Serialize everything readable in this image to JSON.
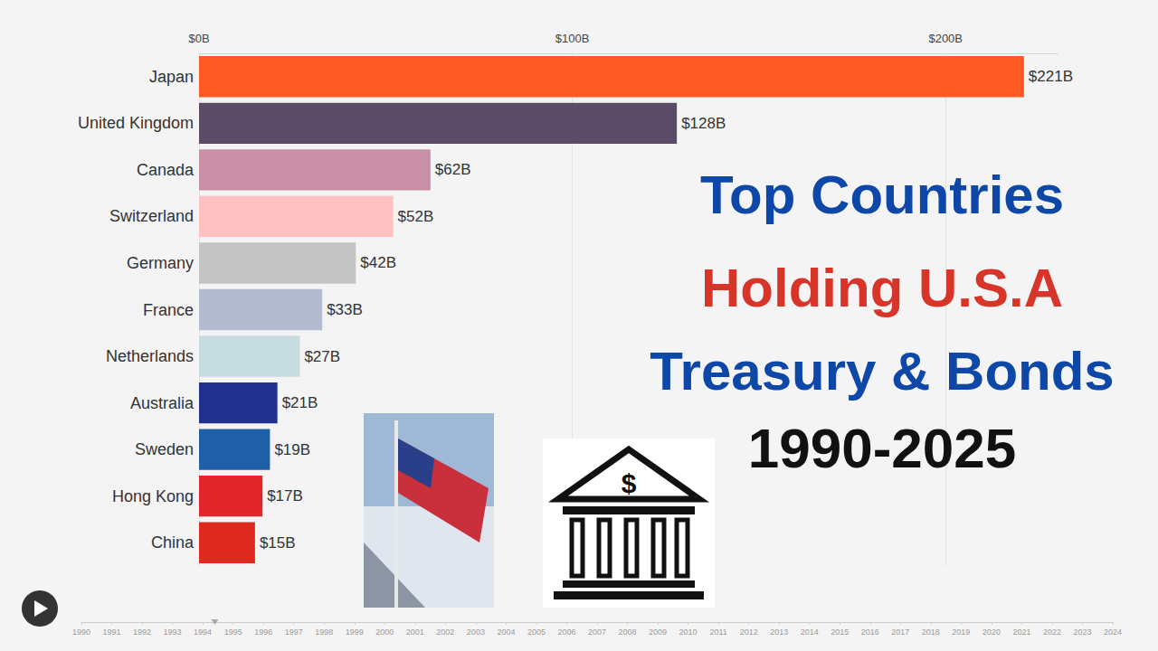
{
  "chart_data": {
    "type": "bar",
    "orientation": "horizontal",
    "categories": [
      "Japan",
      "United Kingdom",
      "Canada",
      "Switzerland",
      "Germany",
      "France",
      "Netherlands",
      "Australia",
      "Sweden",
      "Hong Kong",
      "China"
    ],
    "values": [
      221,
      128,
      62,
      52,
      42,
      33,
      27,
      21,
      19,
      17,
      15
    ],
    "value_labels": [
      "$221B",
      "$128B",
      "$62B",
      "$52B",
      "$42B",
      "$33B",
      "$27B",
      "$21B",
      "$19B",
      "$17B",
      "$15B"
    ],
    "colors": [
      "#ff5a24",
      "#5b4b66",
      "#c88fa6",
      "#ffc1c1",
      "#c4c4c4",
      "#b3bccf",
      "#c7dcdf",
      "#22318f",
      "#1f5fa8",
      "#e3262b",
      "#e12a1f"
    ],
    "xlim": [
      0,
      230
    ],
    "xticks": [
      {
        "value": 0,
        "label": "$0B"
      },
      {
        "value": 100,
        "label": "$100B"
      },
      {
        "value": 200,
        "label": "$200B"
      }
    ],
    "grid": true,
    "data_labels": true,
    "annotations": [
      {
        "text": "Top Countries",
        "color": "#0d47a8"
      },
      {
        "text": "Holding U.S.A",
        "color": "#d7352a"
      },
      {
        "text": "Treasury & Bonds",
        "color": "#0d47a8"
      },
      {
        "text": "1990-2025",
        "color": "#111111"
      },
      {
        "text": "$",
        "color": "#111111"
      }
    ],
    "timeline": {
      "years": [
        1990,
        1991,
        1992,
        1993,
        1994,
        1995,
        1996,
        1997,
        1998,
        1999,
        2000,
        2001,
        2002,
        2003,
        2004,
        2005,
        2006,
        2007,
        2008,
        2009,
        2010,
        2011,
        2012,
        2013,
        2014,
        2015,
        2016,
        2017,
        2018,
        2019,
        2020,
        2021,
        2022,
        2023,
        2024
      ],
      "current": 1994.4
    }
  }
}
